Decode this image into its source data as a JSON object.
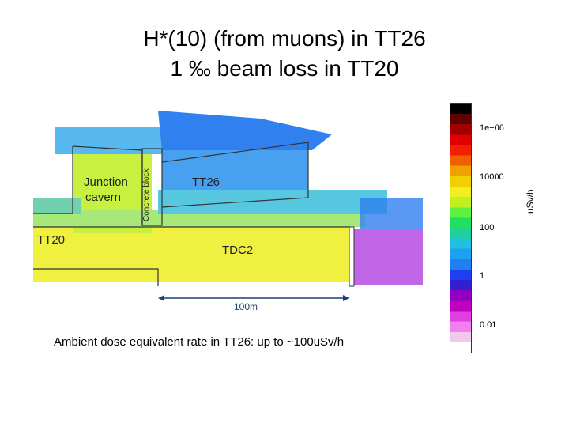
{
  "title": {
    "line1": "H*(10) (from muons) in TT26",
    "line2": "1 ‰ beam loss in TT20"
  },
  "labels": {
    "junction_line1": "Junction",
    "junction_line2": "cavern",
    "concrete_block": "Concrete block",
    "tt26": "TT26",
    "tt20": "TT20",
    "tdc2": "TDC2"
  },
  "scale_bar": {
    "label": "100m"
  },
  "caption": "Ambient dose equivalent rate in TT26: up to ~100uSv/h",
  "colorbar": {
    "unit": "uSv/h",
    "ticks": [
      "1e+06",
      "10000",
      "100",
      "1",
      "0.01"
    ],
    "colors": [
      "#ffffff",
      "#f0c8f0",
      "#f080f0",
      "#e040e0",
      "#c000c0",
      "#9000c0",
      "#3020d0",
      "#2040f0",
      "#2080f0",
      "#20a0f0",
      "#20c0e0",
      "#20d0a0",
      "#20e060",
      "#60f040",
      "#c0f020",
      "#f0f020",
      "#f0d000",
      "#f0a000",
      "#f06000",
      "#f02000",
      "#e00000",
      "#a00000",
      "#600000",
      "#000000"
    ]
  }
}
